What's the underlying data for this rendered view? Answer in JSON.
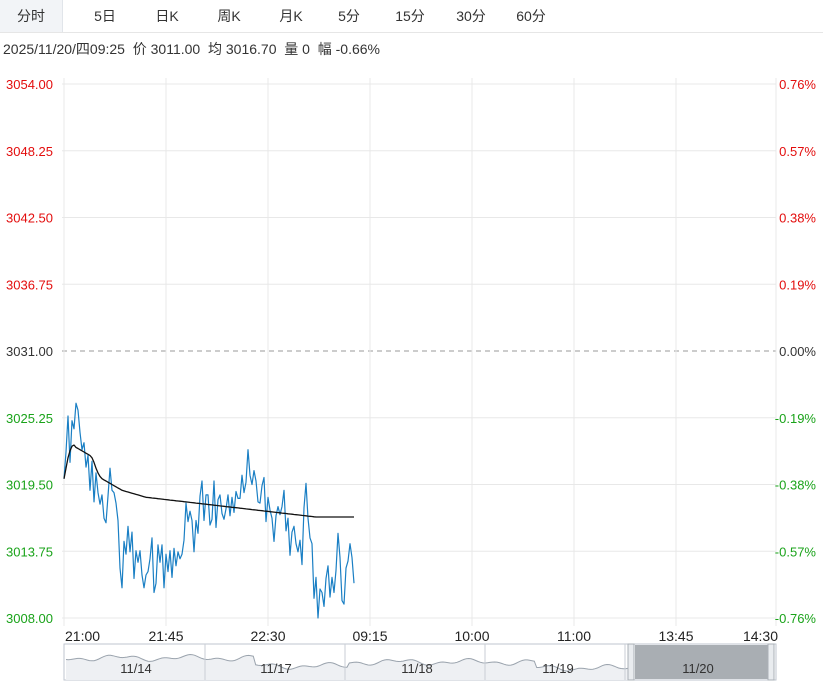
{
  "tabs": [
    "分时",
    "5日",
    "日K",
    "周K",
    "月K",
    "5分",
    "15分",
    "30分",
    "60分"
  ],
  "active_tab": 0,
  "info": {
    "datetime": "2025/11/20/四09:25",
    "price_label": "价",
    "price": "3011.00",
    "avg_label": "均",
    "avg": "3016.70",
    "vol_label": "量",
    "vol": "0",
    "chg_label": "幅",
    "chg": "-0.66%"
  },
  "colors": {
    "up": "#e30d0d",
    "down": "#1aa31a",
    "neutral": "#333333",
    "price_line": "#1a7fc4",
    "avg_line": "#111111",
    "grid": "#e8e8e8"
  },
  "chart_data": {
    "type": "line",
    "title": "",
    "prev_close": 3031.0,
    "ylim": [
      3008.0,
      3054.0
    ],
    "y_ticks_left": [
      "3054.00",
      "3048.25",
      "3042.50",
      "3036.75",
      "3031.00",
      "3025.25",
      "3019.50",
      "3013.75",
      "3008.00"
    ],
    "y_ticks_right": [
      "0.76%",
      "0.57%",
      "0.38%",
      "0.19%",
      "0.00%",
      "-0.19%",
      "-0.38%",
      "-0.57%",
      "-0.76%"
    ],
    "x_ticks": [
      "21:00",
      "21:45",
      "22:30",
      "09:15",
      "10:00",
      "11:00",
      "13:45",
      "14:30"
    ],
    "series": [
      {
        "name": "价",
        "values": [
          3020.0,
          3022.3,
          3025.4,
          3021.4,
          3025.0,
          3024.3,
          3026.5,
          3025.9,
          3024.0,
          3022.5,
          3023.1,
          3021.0,
          3022.0,
          3019.0,
          3021.5,
          3018.0,
          3020.5,
          3018.8,
          3017.8,
          3018.6,
          3016.6,
          3016.2,
          3018.5,
          3020.9,
          3019.0,
          3018.8,
          3017.9,
          3016.4,
          3012.3,
          3010.6,
          3014.6,
          3013.5,
          3015.9,
          3013.7,
          3015.4,
          3011.4,
          3013.8,
          3012.8,
          3013.8,
          3011.7,
          3010.6,
          3011.7,
          3012.0,
          3013.1,
          3014.9,
          3010.2,
          3011.0,
          3014.3,
          3012.8,
          3014.3,
          3010.6,
          3013.5,
          3012.0,
          3013.8,
          3011.5,
          3014.0,
          3012.5,
          3013.7,
          3013.1,
          3013.5,
          3014.7,
          3017.9,
          3016.3,
          3017.2,
          3016.4,
          3013.7,
          3016.4,
          3015.3,
          3018.5,
          3019.8,
          3016.4,
          3018.6,
          3018.6,
          3016.0,
          3016.5,
          3019.8,
          3015.8,
          3018.2,
          3018.6,
          3017.0,
          3016.5,
          3017.4,
          3018.6,
          3016.8,
          3018.4,
          3017.1,
          3018.9,
          3018.3,
          3018.3,
          3020.3,
          3018.8,
          3019.7,
          3022.5,
          3020.3,
          3019.5,
          3020.7,
          3019.8,
          3018.0,
          3017.9,
          3019.4,
          3020.1,
          3016.3,
          3018.4,
          3017.3,
          3016.6,
          3014.6,
          3016.8,
          3017.6,
          3016.9,
          3017.6,
          3019.0,
          3015.5,
          3016.6,
          3013.4,
          3015.4,
          3015.9,
          3014.4,
          3013.7,
          3014.7,
          3012.6,
          3017.5,
          3019.6,
          3016.6,
          3014.9,
          3014.4,
          3009.7,
          3011.5,
          3008.0,
          3010.5,
          3010.2,
          3009.0,
          3011.4,
          3012.5,
          3009.8,
          3011.5,
          3010.2,
          3012.1,
          3015.3,
          3013.2,
          3009.5,
          3009.2,
          3012.3,
          3012.9,
          3014.4,
          3013.2,
          3011.0
        ]
      },
      {
        "name": "均",
        "values": [
          3020.0,
          3020.9,
          3021.8,
          3022.4,
          3022.8,
          3022.9,
          3022.7,
          3022.6,
          3022.5,
          3022.4,
          3022.3,
          3022.2,
          3022.1,
          3022.0,
          3021.8,
          3021.4,
          3020.9,
          3020.5,
          3020.2,
          3020.0,
          3019.9,
          3019.8,
          3019.7,
          3019.6,
          3019.5,
          3019.4,
          3019.3,
          3019.2,
          3019.1,
          3019.0,
          3018.95,
          3018.9,
          3018.85,
          3018.8,
          3018.75,
          3018.7,
          3018.65,
          3018.6,
          3018.55,
          3018.5,
          3018.45,
          3018.4,
          3018.38,
          3018.36,
          3018.34,
          3018.32,
          3018.3,
          3018.28,
          3018.26,
          3018.24,
          3018.22,
          3018.2,
          3018.18,
          3018.16,
          3018.14,
          3018.12,
          3018.1,
          3018.08,
          3018.06,
          3018.04,
          3018.02,
          3018.0,
          3017.98,
          3017.96,
          3017.94,
          3017.92,
          3017.9,
          3017.88,
          3017.86,
          3017.84,
          3017.82,
          3017.8,
          3017.78,
          3017.76,
          3017.74,
          3017.72,
          3017.7,
          3017.68,
          3017.66,
          3017.64,
          3017.62,
          3017.6,
          3017.58,
          3017.56,
          3017.54,
          3017.52,
          3017.5,
          3017.48,
          3017.46,
          3017.44,
          3017.42,
          3017.4,
          3017.38,
          3017.36,
          3017.34,
          3017.32,
          3017.3,
          3017.28,
          3017.26,
          3017.24,
          3017.22,
          3017.2,
          3017.18,
          3017.16,
          3017.14,
          3017.12,
          3017.1,
          3017.08,
          3017.06,
          3017.04,
          3017.02,
          3017.0,
          3016.98,
          3016.96,
          3016.94,
          3016.92,
          3016.9,
          3016.88,
          3016.86,
          3016.84,
          3016.82,
          3016.8,
          3016.78,
          3016.76,
          3016.74,
          3016.72,
          3016.7,
          3016.7,
          3016.7,
          3016.7,
          3016.7,
          3016.7,
          3016.7,
          3016.7,
          3016.7,
          3016.7,
          3016.7,
          3016.7,
          3016.7,
          3016.7,
          3016.7,
          3016.7,
          3016.7,
          3016.7,
          3016.7,
          3016.7
        ]
      }
    ],
    "navigator_dates": [
      "11/14",
      "11/17",
      "11/18",
      "11/19",
      "11/20"
    ],
    "navigator_selected": "11/20"
  }
}
